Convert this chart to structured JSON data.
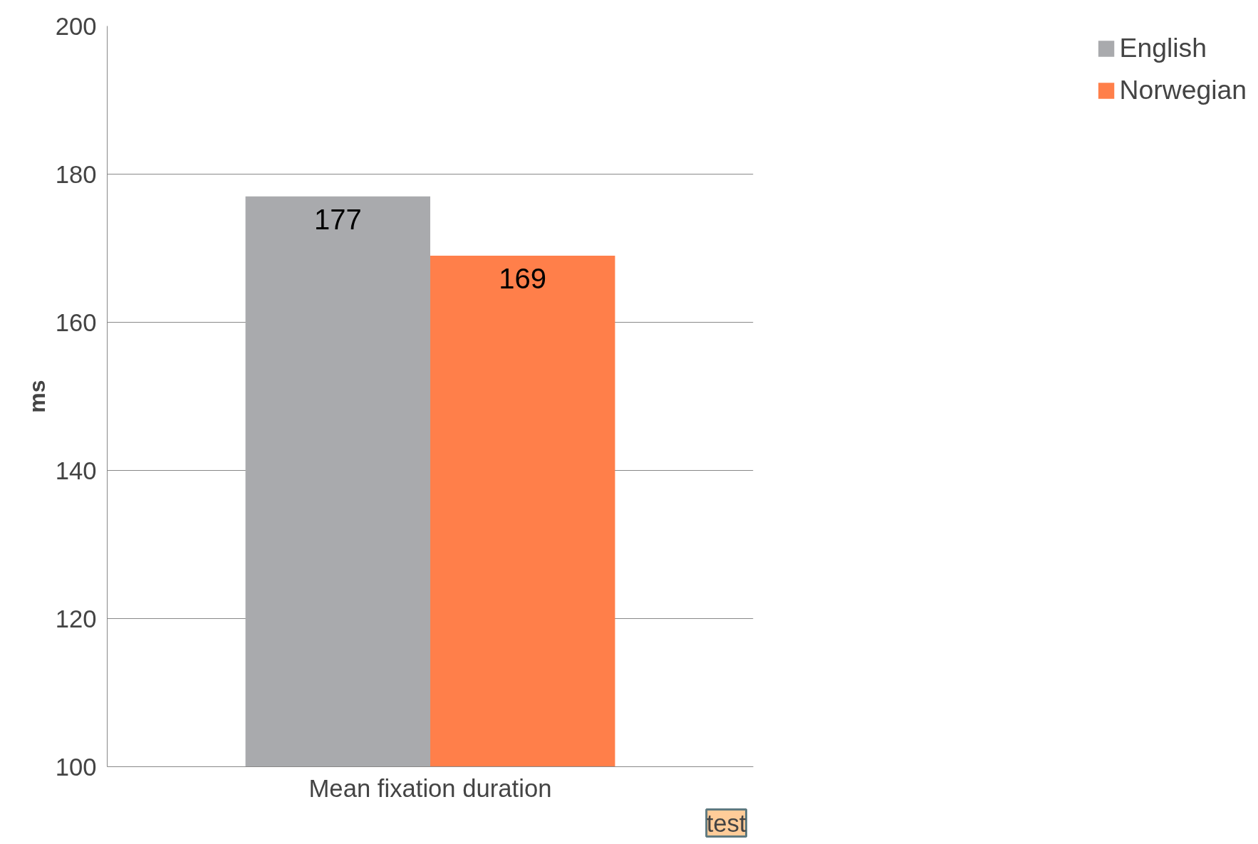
{
  "chart_data": {
    "type": "bar",
    "categories": [
      "Mean fixation duration"
    ],
    "ylabel": "ms",
    "series": [
      {
        "name": "English",
        "color": "#a9aaad",
        "values": [
          177
        ]
      },
      {
        "name": "Norwegian",
        "color": "#ff7f4a",
        "values": [
          169
        ]
      }
    ],
    "ylim": [
      100,
      200
    ],
    "yticks": [
      100,
      120,
      140,
      160,
      180,
      200
    ],
    "grid": "y",
    "legend": "right",
    "data_labels": true,
    "annotations": [
      "test"
    ]
  }
}
